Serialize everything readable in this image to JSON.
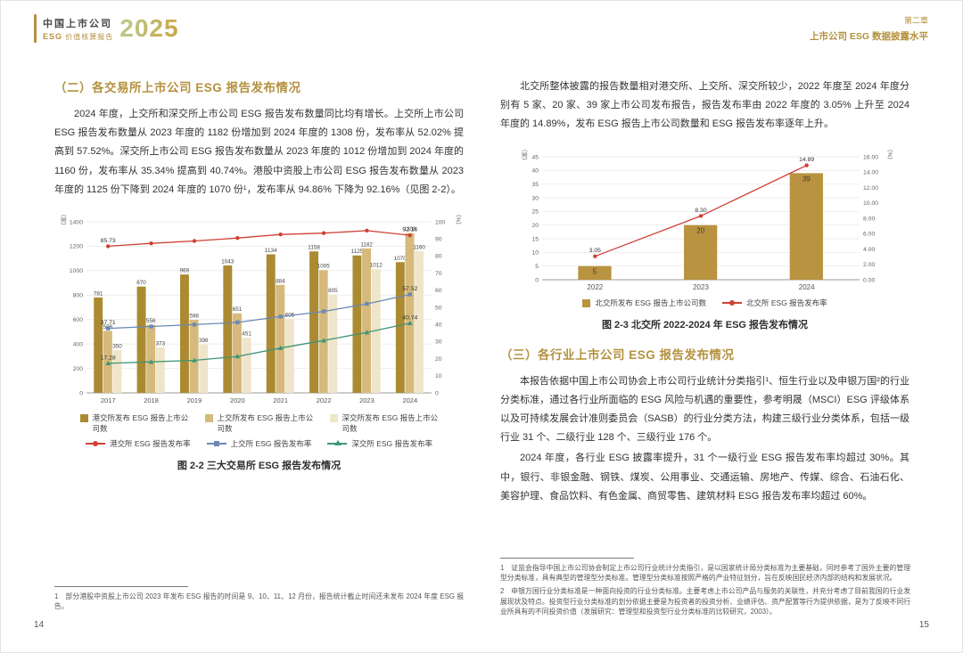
{
  "colors": {
    "accent_gold": "#b4913f",
    "body_text": "#333333",
    "grid": "#e8e8e6"
  },
  "header": {
    "logo_title": "中国上市公司",
    "logo_esg": "ESG",
    "logo_subtitle": "价值核算报告",
    "logo_year": "2025",
    "chapter": "第二章",
    "chapter_title": "上市公司 ESG 数据披露水平"
  },
  "left_page": {
    "heading": "（二）各交易所上市公司 ESG 报告发布情况",
    "paragraph": "2024 年度，上交所和深交所上市公司 ESG 报告发布数量同比均有增长。上交所上市公司 ESG 报告发布数量从 2023 年度的 1182 份增加到 2024 年度的 1308 份，发布率从 52.02% 提高到 57.52%。深交所上市公司 ESG 报告发布数量从 2023 年度的 1012 份增加到 2024 年度的 1160 份，发布率从 35.34% 提高到 40.74%。港股中资股上市公司 ESG 报告发布数量从 2023 年度的 1125 份下降到 2024 年度的 1070 份¹，发布率从 94.86% 下降为 92.16%（见图 2-2）。",
    "figure_caption": "图 2-2 三大交易所 ESG 报告发布情况",
    "footnote": "1　部分港股中资股上市公司 2023 年发布 ESG 报告的时间是 9、10、11、12 月份，报告统计截止时间还未发布 2024 年度 ESG 报告。",
    "page_number": "14"
  },
  "right_page": {
    "paragraph": "北交所整体披露的报告数量相对港交所、上交所、深交所较少，2022 年度至 2024 年度分别有 5 家、20 家、39 家上市公司发布报告，报告发布率由 2022 年度的 3.05% 上升至 2024 年度的 14.89%，发布 ESG 报告上市公司数量和 ESG 报告发布率逐年上升。",
    "figure_caption": "图 2-3 北交所 2022-2024 年 ESG 报告发布情况",
    "heading2": "（三）各行业上市公司 ESG 报告发布情况",
    "paragraph2": "本报告依据中国上市公司协会上市公司行业统计分类指引¹、恒生行业以及申银万国²的行业分类标准，通过各行业所面临的 ESG 风险与机遇的重要性，参考明晟（MSCI）ESG 评级体系以及可持续发展会计准则委员会（SASB）的行业分类方法，构建三级行业分类体系，包括一级行业 31 个、二级行业 128 个、三级行业 176 个。",
    "paragraph3": "2024 年度，各行业 ESG 披露率提升，31 个一级行业 ESG 报告发布率均超过 30%。其中，银行、非银金融、钢铁、煤炭、公用事业、交通运输、房地产、传媒、综合、石油石化、美容护理、食品饮料、有色金属、商贸零售、建筑材料 ESG 报告发布率均超过 60%。",
    "footnote1": "1　证监会指导中国上市公司协会制定上市公司行业统计分类指引，是以国家统计局分类标准为主要基础，同时参考了国外主要的管理型分类标准，具有典型的管理型分类标准。管理型分类标准按照严格的产业特征划分，旨在反映国民经济内部的结构和发展状况。",
    "footnote2": "2　申银万国行业分类标准是一种面向投资的行业分类标准。主要考虑上市公司产品与服务的关联性，并充分考虑了目前我国的行业发展现状及特点。投资型行业分类标准的划分依据主要是为投资者的投资分析、业绩评估、资产配置等行为提供依据，是为了反映不同行业所具有的不同投资价值（发展研究：管理型和投资型行业分类标准的比较研究，2003）。",
    "page_number": "15"
  },
  "chart_data": [
    {
      "id": "fig22",
      "type": "bar",
      "combo": "bar+line",
      "title": "图 2-2 三大交易所 ESG 报告发布情况",
      "categories": [
        "2017",
        "2018",
        "2019",
        "2020",
        "2021",
        "2022",
        "2023",
        "2024"
      ],
      "left_axis": {
        "label": "（家）",
        "min": 0,
        "max": 1400,
        "step": 200,
        "decimals": 0
      },
      "right_axis": {
        "label": "（%）",
        "min": 0,
        "max": 100,
        "step": 10,
        "decimals": 0
      },
      "grid": true,
      "legend_position": "bottom",
      "bar_series": [
        {
          "name": "港交所发布 ESG 报告上市公司数",
          "color": "#ab8a32",
          "values": [
            781,
            870,
            969,
            1043,
            1134,
            1158,
            1125,
            1070
          ]
        },
        {
          "name": "上交所发布 ESG 报告上市公司数",
          "color": "#d6ba7c",
          "values": [
            508,
            556,
            598,
            651,
            884,
            1005,
            1182,
            1308
          ]
        },
        {
          "name": "深交所发布 ESG 报告上市公司数",
          "color": "#efe5ca",
          "values": [
            350,
            373,
            396,
            451,
            605,
            805,
            1012,
            1160
          ]
        }
      ],
      "line_series": [
        {
          "name": "港交所 ESG 报告发布率",
          "color": "#cf4035",
          "marker": "circle",
          "values": [
            85.73,
            87.4,
            88.8,
            90.5,
            92.6,
            93.4,
            94.86,
            92.16
          ],
          "labels": [
            "85.73",
            null,
            null,
            null,
            null,
            null,
            null,
            "92.16"
          ]
        },
        {
          "name": "上交所 ESG 报告发布率",
          "color": "#6a89b5",
          "marker": "square",
          "values": [
            37.71,
            38.8,
            39.9,
            41.2,
            44.6,
            47.6,
            52.02,
            57.52
          ],
          "labels": [
            "37.71",
            null,
            null,
            null,
            null,
            null,
            null,
            "57.52"
          ]
        },
        {
          "name": "深交所 ESG 报告发布率",
          "color": "#3d9678",
          "marker": "triangle",
          "values": [
            17.28,
            18.1,
            19.0,
            21.3,
            26.2,
            30.6,
            35.34,
            40.74
          ],
          "labels": [
            "17.28",
            null,
            null,
            null,
            null,
            null,
            null,
            "40.74"
          ]
        }
      ]
    },
    {
      "id": "fig23",
      "type": "bar",
      "combo": "bar+line",
      "title": "图 2-3 北交所 2022-2024 年 ESG 报告发布情况",
      "categories": [
        "2022",
        "2023",
        "2024"
      ],
      "left_axis": {
        "label": "（家）",
        "min": 0,
        "max": 45,
        "step": 5,
        "decimals": 0
      },
      "right_axis": {
        "label": "（%）",
        "min": 0,
        "max": 16,
        "step": 2,
        "decimals": 2
      },
      "grid": true,
      "legend_position": "bottom",
      "bar_series": [
        {
          "name": "北交所发布 ESG 报告上市公司数",
          "color": "#b9933f",
          "label_inside": true,
          "values": [
            5,
            20,
            39
          ]
        }
      ],
      "line_series": [
        {
          "name": "北交所 ESG 报告发布率",
          "color": "#cf4035",
          "marker": "circle",
          "values": [
            3.05,
            8.3,
            14.89
          ],
          "labels": [
            "3.05",
            "8.30",
            "14.89"
          ]
        }
      ]
    }
  ]
}
